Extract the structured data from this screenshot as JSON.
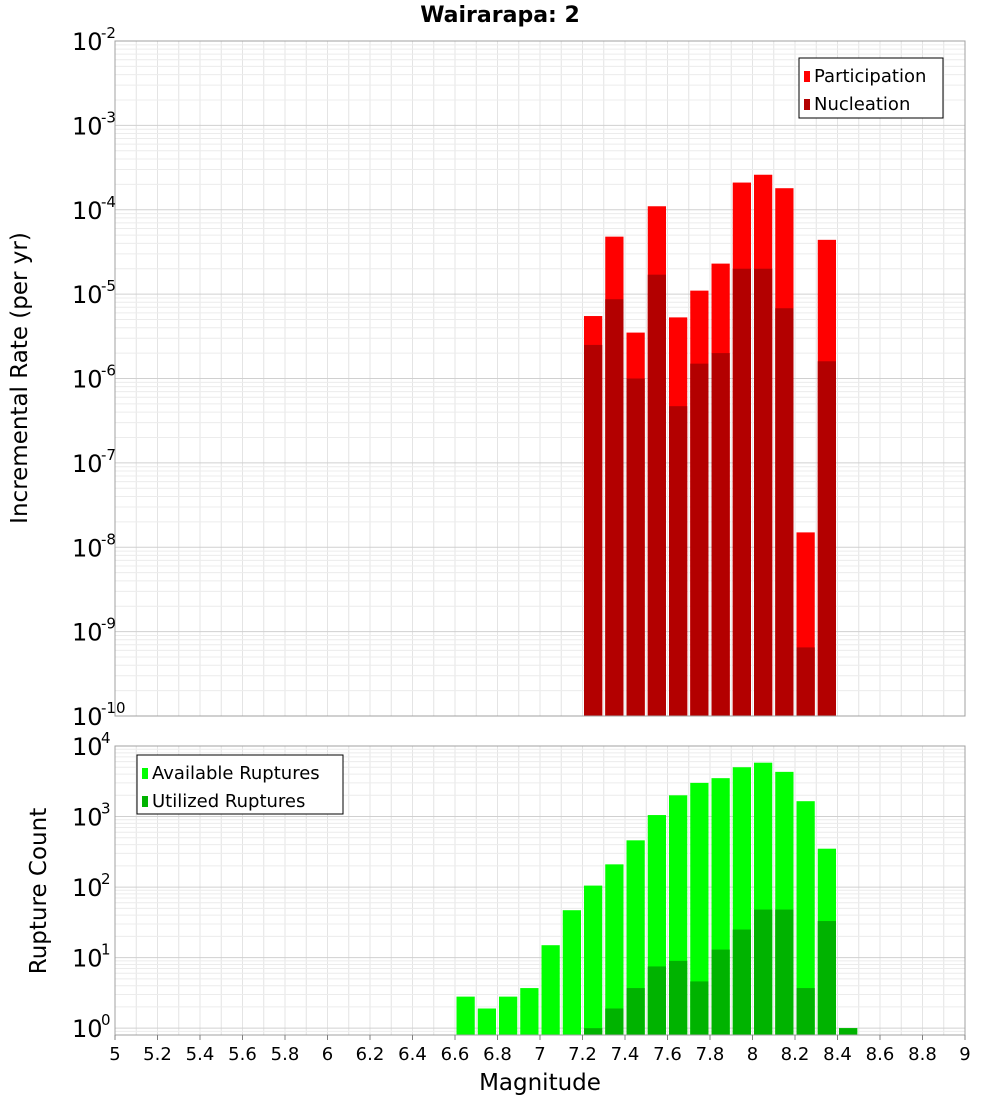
{
  "chart_data": [
    {
      "type": "bar",
      "title": "Wairarapa: 2",
      "ylabel": "Incremental Rate (per yr)",
      "xlabel": "",
      "log_y": true,
      "xlim": [
        5,
        9
      ],
      "ylim": [
        1e-10,
        0.01
      ],
      "grid": true,
      "legend_position": "top-right",
      "x": [
        7.25,
        7.35,
        7.45,
        7.55,
        7.65,
        7.75,
        7.85,
        7.95,
        8.05,
        8.15,
        8.25,
        8.35
      ],
      "series": [
        {
          "name": "Participation",
          "color": "#ff0000",
          "values": [
            5.5e-06,
            4.8e-05,
            3.5e-06,
            0.00011,
            5.3e-06,
            1.1e-05,
            2.3e-05,
            0.00021,
            0.00026,
            0.00018,
            1.5e-08,
            4.4e-05
          ]
        },
        {
          "name": "Nucleation",
          "color": "#b30000",
          "values": [
            2.5e-06,
            8.7e-06,
            1e-06,
            1.7e-05,
            4.7e-07,
            1.5e-06,
            2e-06,
            2e-05,
            2e-05,
            6.8e-06,
            6.5e-10,
            1.6e-06
          ]
        }
      ],
      "y_ticks": [
        {
          "base": "10",
          "exp": "-10"
        },
        {
          "base": "10",
          "exp": "-9"
        },
        {
          "base": "10",
          "exp": "-8"
        },
        {
          "base": "10",
          "exp": "-7"
        },
        {
          "base": "10",
          "exp": "-6"
        },
        {
          "base": "10",
          "exp": "-5"
        },
        {
          "base": "10",
          "exp": "-4"
        },
        {
          "base": "10",
          "exp": "-3"
        },
        {
          "base": "10",
          "exp": "-2"
        }
      ]
    },
    {
      "type": "bar",
      "title": "",
      "ylabel": "Rupture Count",
      "xlabel": "Magnitude",
      "log_y": true,
      "xlim": [
        5,
        9
      ],
      "ylim": [
        0.8,
        10000
      ],
      "grid": true,
      "legend_position": "top-left",
      "x": [
        6.65,
        6.75,
        6.85,
        6.95,
        7.05,
        7.15,
        7.25,
        7.35,
        7.45,
        7.55,
        7.65,
        7.75,
        7.85,
        7.95,
        8.05,
        8.15,
        8.25,
        8.35,
        8.45
      ],
      "series": [
        {
          "name": "Available Ruptures",
          "color": "#00ff00",
          "values": [
            2.8,
            1.9,
            2.8,
            3.7,
            15,
            47,
            105,
            210,
            460,
            1050,
            2000,
            3000,
            3500,
            5000,
            5800,
            4300,
            1650,
            350,
            1
          ]
        },
        {
          "name": "Utilized Ruptures",
          "color": "#00b300",
          "values": [
            0,
            0,
            0,
            0,
            0,
            0,
            1,
            1.9,
            3.7,
            7.5,
            9,
            4.6,
            13,
            25,
            48,
            48,
            3.7,
            33,
            1
          ]
        }
      ],
      "x_ticks": [
        "5",
        "5.2",
        "5.4",
        "5.6",
        "5.8",
        "6",
        "6.2",
        "6.4",
        "6.6",
        "6.8",
        "7",
        "7.2",
        "7.4",
        "7.6",
        "7.8",
        "8",
        "8.2",
        "8.4",
        "8.6",
        "8.8",
        "9"
      ],
      "y_ticks": [
        {
          "base": "10",
          "exp": "0"
        },
        {
          "base": "10",
          "exp": "1"
        },
        {
          "base": "10",
          "exp": "2"
        },
        {
          "base": "10",
          "exp": "3"
        },
        {
          "base": "10",
          "exp": "4"
        }
      ]
    }
  ]
}
